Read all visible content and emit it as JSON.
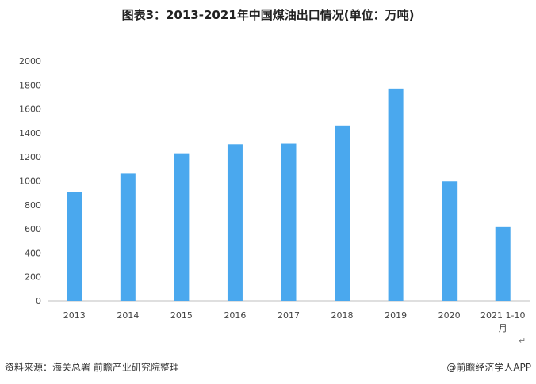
{
  "title": "图表3：2013-2021年中国煤油出口情况(单位：万吨)",
  "chart_data": {
    "type": "bar",
    "categories": [
      "2013",
      "2014",
      "2015",
      "2016",
      "2017",
      "2018",
      "2019",
      "2020",
      "2021 1-10月"
    ],
    "values": [
      910,
      1060,
      1230,
      1305,
      1310,
      1460,
      1770,
      995,
      615
    ],
    "ylim": [
      0,
      2000
    ],
    "yticks": [
      "0",
      "200",
      "400",
      "600",
      "800",
      "1000",
      "1200",
      "1400",
      "1600",
      "1800",
      "2000"
    ],
    "bar_color": "#4aa8ee",
    "xlabel": "",
    "ylabel": "",
    "grid": false
  },
  "footer": {
    "source": "资料来源：海关总署 前瞻产业研究院整理",
    "brand": "@前瞻经济学人APP",
    "return_mark": "↵"
  }
}
